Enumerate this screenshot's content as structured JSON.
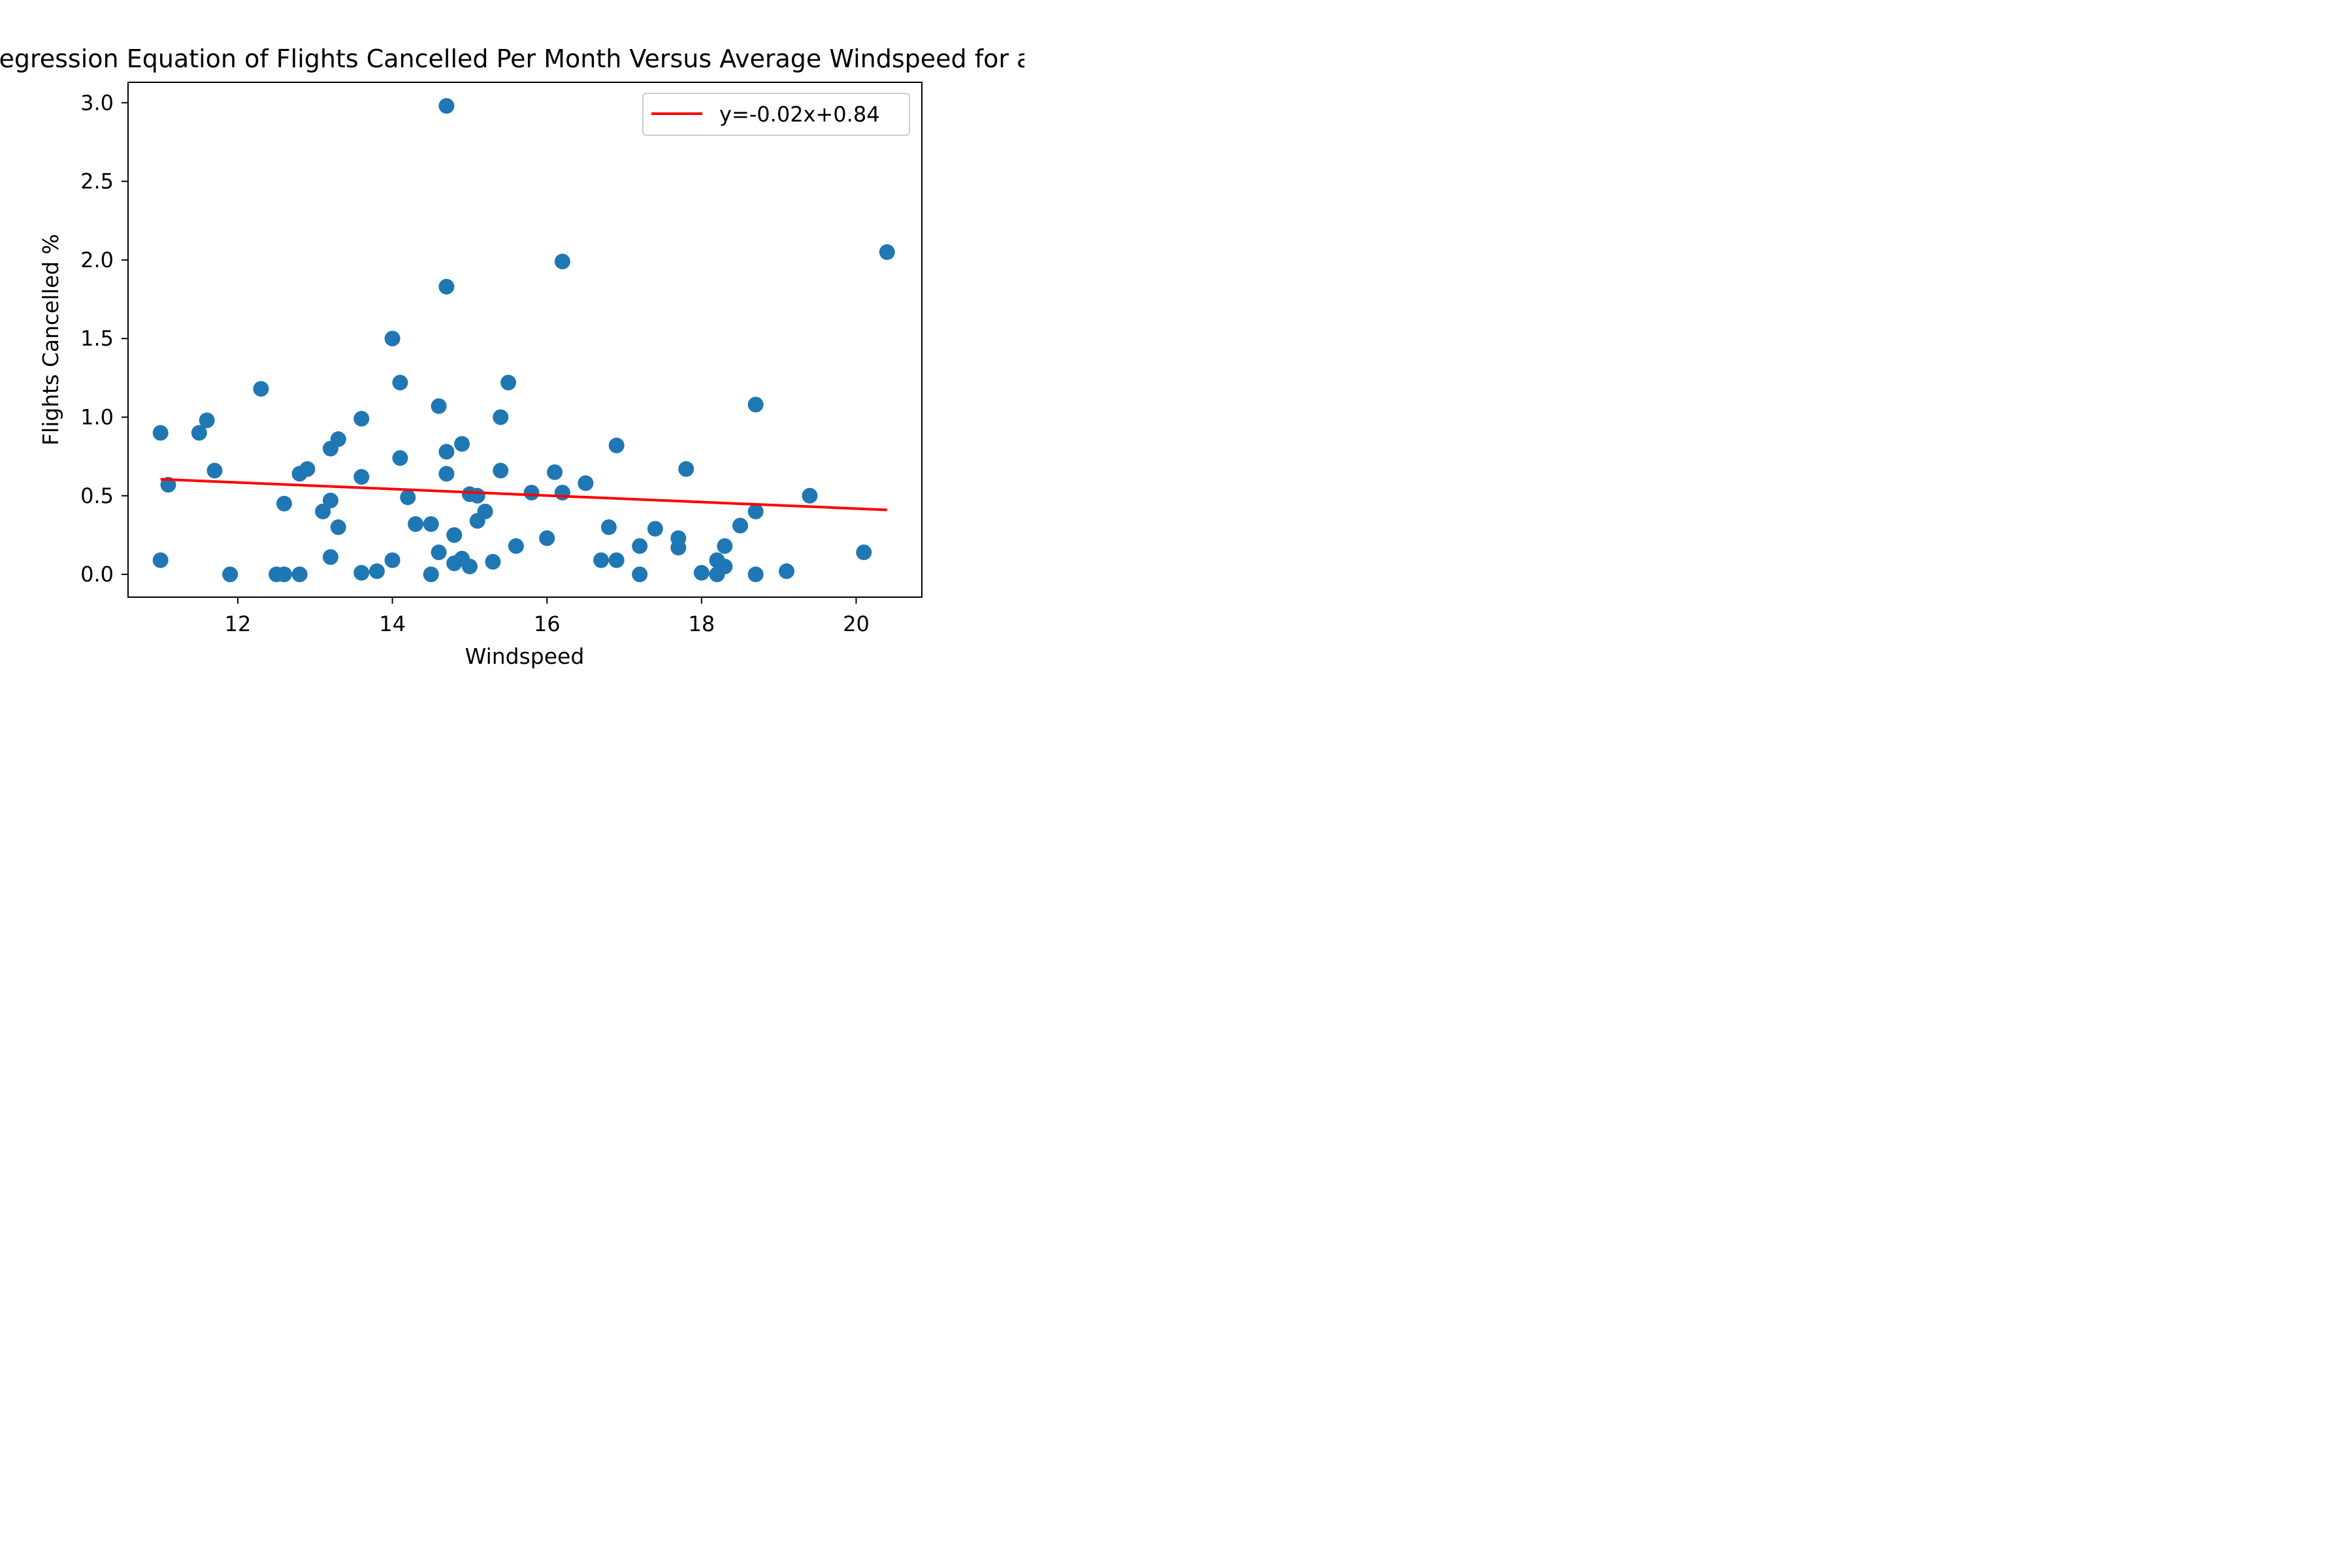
{
  "chart_data": {
    "type": "scatter",
    "title": "Linear Regression Equation of Flights Cancelled Per Month Versus Average Windspeed for all Airports",
    "xlabel": "Windspeed",
    "ylabel": "Flights Cancelled %",
    "xlim": [
      10.58,
      20.85
    ],
    "ylim": [
      -0.145,
      3.13
    ],
    "xticks": [
      12,
      14,
      16,
      18,
      20
    ],
    "xtick_labels": [
      "12",
      "14",
      "16",
      "18",
      "20"
    ],
    "yticks": [
      0.0,
      0.5,
      1.0,
      1.5,
      2.0,
      2.5,
      3.0
    ],
    "ytick_labels": [
      "0.0",
      "0.5",
      "1.0",
      "1.5",
      "2.0",
      "2.5",
      "3.0"
    ],
    "legend": {
      "position": "upper-right",
      "label": "y=-0.02x+0.84"
    },
    "colors": {
      "points": "#1f77b4",
      "fit_line": "#ff0000"
    },
    "series": [
      {
        "type": "scatter",
        "points": [
          [
            11.0,
            0.9
          ],
          [
            11.0,
            0.09
          ],
          [
            11.1,
            0.57
          ],
          [
            11.5,
            0.9
          ],
          [
            11.6,
            0.98
          ],
          [
            11.7,
            0.66
          ],
          [
            11.9,
            0.0
          ],
          [
            12.3,
            1.18
          ],
          [
            12.5,
            0.0
          ],
          [
            12.6,
            0.0
          ],
          [
            12.6,
            0.45
          ],
          [
            12.8,
            0.0
          ],
          [
            12.8,
            0.64
          ],
          [
            12.9,
            0.67
          ],
          [
            13.1,
            0.4
          ],
          [
            13.2,
            0.8
          ],
          [
            13.2,
            0.47
          ],
          [
            13.2,
            0.11
          ],
          [
            13.3,
            0.86
          ],
          [
            13.3,
            0.3
          ],
          [
            13.6,
            0.99
          ],
          [
            13.6,
            0.62
          ],
          [
            13.6,
            0.01
          ],
          [
            13.8,
            0.02
          ],
          [
            14.0,
            1.5
          ],
          [
            14.0,
            0.09
          ],
          [
            14.1,
            1.22
          ],
          [
            14.1,
            0.74
          ],
          [
            14.2,
            0.49
          ],
          [
            14.3,
            0.32
          ],
          [
            14.5,
            0.32
          ],
          [
            14.5,
            0.0
          ],
          [
            14.6,
            1.07
          ],
          [
            14.6,
            0.14
          ],
          [
            14.7,
            2.98
          ],
          [
            14.7,
            1.83
          ],
          [
            14.7,
            0.78
          ],
          [
            14.7,
            0.64
          ],
          [
            14.8,
            0.25
          ],
          [
            14.8,
            0.07
          ],
          [
            14.9,
            0.83
          ],
          [
            14.9,
            0.1
          ],
          [
            15.0,
            0.51
          ],
          [
            15.0,
            0.05
          ],
          [
            15.1,
            0.5
          ],
          [
            15.1,
            0.34
          ],
          [
            15.2,
            0.4
          ],
          [
            15.3,
            0.08
          ],
          [
            15.4,
            1.0
          ],
          [
            15.4,
            0.66
          ],
          [
            15.5,
            1.22
          ],
          [
            15.6,
            0.18
          ],
          [
            15.8,
            0.52
          ],
          [
            16.0,
            0.23
          ],
          [
            16.1,
            0.65
          ],
          [
            16.2,
            1.99
          ],
          [
            16.2,
            0.52
          ],
          [
            16.5,
            0.58
          ],
          [
            16.7,
            0.09
          ],
          [
            16.8,
            0.3
          ],
          [
            16.9,
            0.82
          ],
          [
            16.9,
            0.09
          ],
          [
            17.2,
            0.18
          ],
          [
            17.2,
            0.0
          ],
          [
            17.4,
            0.29
          ],
          [
            17.7,
            0.23
          ],
          [
            17.7,
            0.17
          ],
          [
            17.8,
            0.67
          ],
          [
            18.0,
            0.01
          ],
          [
            18.2,
            0.09
          ],
          [
            18.2,
            0.0
          ],
          [
            18.3,
            0.18
          ],
          [
            18.3,
            0.05
          ],
          [
            18.5,
            0.31
          ],
          [
            18.7,
            1.08
          ],
          [
            18.7,
            0.4
          ],
          [
            18.7,
            0.0
          ],
          [
            19.1,
            0.02
          ],
          [
            19.4,
            0.5
          ],
          [
            20.1,
            0.14
          ],
          [
            20.4,
            2.05
          ]
        ]
      },
      {
        "type": "line",
        "name": "y=-0.02x+0.84",
        "points": [
          [
            11.0,
            0.605
          ],
          [
            20.4,
            0.41
          ]
        ]
      }
    ]
  }
}
